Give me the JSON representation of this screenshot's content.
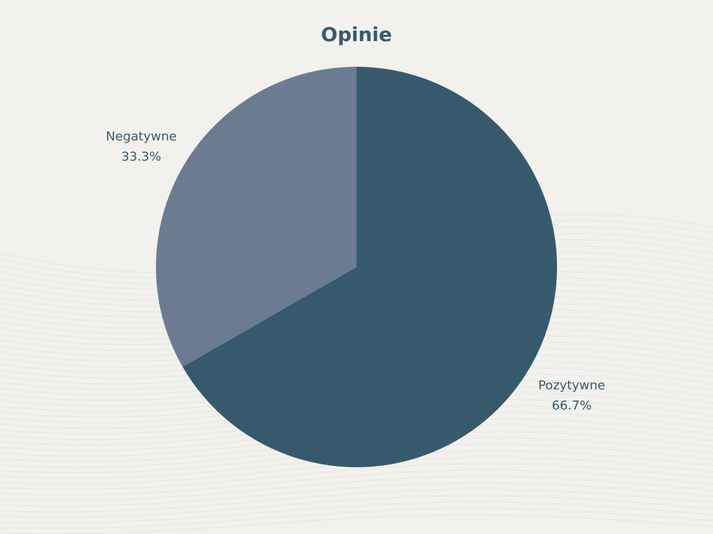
{
  "chart_data": {
    "type": "pie",
    "title": "Opinie",
    "slices": [
      {
        "label": "Pozytywne",
        "value": 66.7,
        "percent_label": "66.7%",
        "color": "#365a6c"
      },
      {
        "label": "Negatywne",
        "value": 33.3,
        "percent_label": "33.3%",
        "color": "#6b7b91"
      }
    ],
    "start_angle_deg": 0,
    "direction": "clockwise",
    "legend": "none"
  },
  "colors": {
    "background": "#f3f1ed",
    "text": "#365a6c",
    "wave": "#d7e2dd"
  }
}
